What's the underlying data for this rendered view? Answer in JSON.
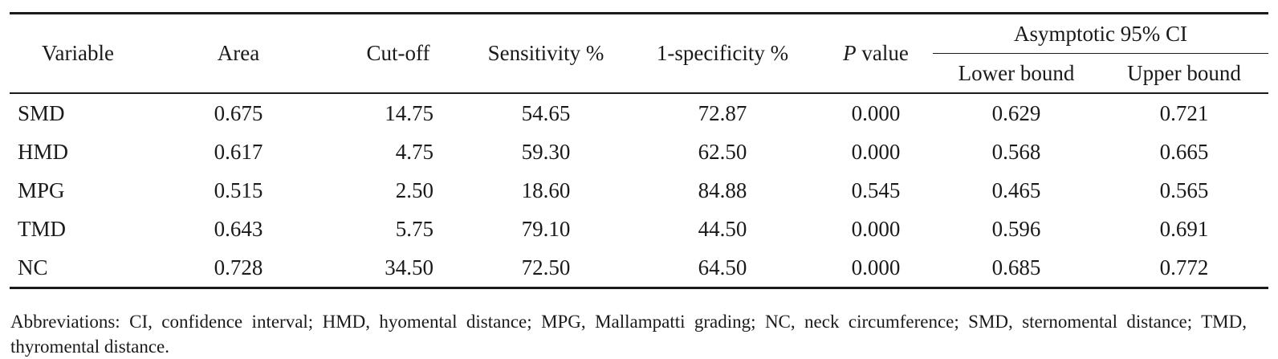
{
  "table": {
    "headers": {
      "variable": "Variable",
      "area": "Area",
      "cutoff": "Cut-off",
      "sensitivity": "Sensitivity %",
      "one_minus_specificity": "1-specificity %",
      "p_italic": "P",
      "p_rest": " value",
      "ci_group": "Asymptotic 95% CI",
      "lower": "Lower bound",
      "upper": "Upper bound"
    },
    "rows": [
      {
        "variable": "SMD",
        "area": "0.675",
        "cutoff": "14.75",
        "sensitivity": "54.65",
        "one_minus_specificity": "72.87",
        "p": "0.000",
        "lower": "0.629",
        "upper": "0.721"
      },
      {
        "variable": "HMD",
        "area": "0.617",
        "cutoff": "4.75",
        "sensitivity": "59.30",
        "one_minus_specificity": "62.50",
        "p": "0.000",
        "lower": "0.568",
        "upper": "0.665"
      },
      {
        "variable": "MPG",
        "area": "0.515",
        "cutoff": "2.50",
        "sensitivity": "18.60",
        "one_minus_specificity": "84.88",
        "p": "0.545",
        "lower": "0.465",
        "upper": "0.565"
      },
      {
        "variable": "TMD",
        "area": "0.643",
        "cutoff": "5.75",
        "sensitivity": "79.10",
        "one_minus_specificity": "44.50",
        "p": "0.000",
        "lower": "0.596",
        "upper": "0.691"
      },
      {
        "variable": "NC",
        "area": "0.728",
        "cutoff": "34.50",
        "sensitivity": "72.50",
        "one_minus_specificity": "64.50",
        "p": "0.000",
        "lower": "0.685",
        "upper": "0.772"
      }
    ]
  },
  "footnote": "Abbreviations: CI, confidence interval; HMD, hyomental distance; MPG, Mallampatti grading; NC, neck circumference; SMD, sternomental distance; TMD, thyromental distance."
}
